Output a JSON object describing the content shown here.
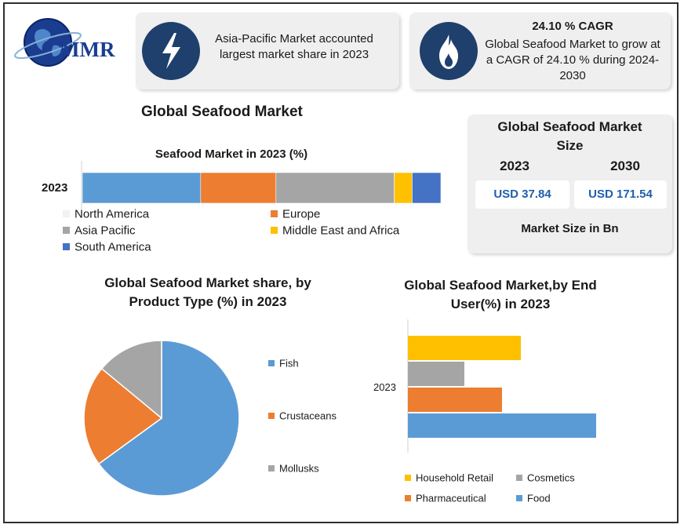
{
  "logo": {
    "text": "MMR"
  },
  "info_cards": [
    {
      "icon": "lightning-icon",
      "text": "Asia-Pacific Market accounted largest market share in 2023"
    },
    {
      "icon": "flame-icon",
      "title": "24.10 % CAGR",
      "text": "Global Seafood Market to grow at a CAGR of 24.10 % during 2024-2030"
    }
  ],
  "main_title": "Global Seafood Market",
  "size_card": {
    "title": "Global Seafood Market Size",
    "year_a": "2023",
    "year_b": "2030",
    "value_a": "USD 37.84",
    "value_b": "USD 171.54",
    "footer": "Market Size in Bn"
  },
  "colors": {
    "blue": "#5b9bd5",
    "orange": "#ed7d31",
    "gray": "#a5a5a5",
    "yellow": "#ffc000",
    "darkblue": "#4472c4"
  },
  "chart_data": [
    {
      "type": "bar",
      "orientation": "horizontal-stacked",
      "title": "Seafood Market in 2023 (%)",
      "categories": [
        "2023"
      ],
      "series": [
        {
          "name": "North America",
          "values": [
            33
          ],
          "color": "#5b9bd5",
          "legend_color": "#f2f2f2"
        },
        {
          "name": "Europe",
          "values": [
            21
          ],
          "color": "#ed7d31"
        },
        {
          "name": "Asia Pacific",
          "values": [
            33
          ],
          "color": "#a5a5a5"
        },
        {
          "name": "Middle East and Africa",
          "values": [
            5
          ],
          "color": "#ffc000"
        },
        {
          "name": "South America",
          "values": [
            8
          ],
          "color": "#4472c4"
        }
      ],
      "legend": "bottom"
    },
    {
      "type": "pie",
      "title": "Global Seafood Market share, by Product Type (%) in 2023",
      "categories": [
        "Fish",
        "Crustaceans",
        "Mollusks"
      ],
      "values": [
        65,
        21,
        14
      ],
      "colors": [
        "#5b9bd5",
        "#ed7d31",
        "#a5a5a5"
      ],
      "legend": "right"
    },
    {
      "type": "bar",
      "orientation": "horizontal-grouped",
      "title": "Global Seafood Market,by End User(%) in 2023",
      "categories": [
        "2023"
      ],
      "series": [
        {
          "name": "Household Retail",
          "values": [
            30
          ],
          "color": "#ffc000"
        },
        {
          "name": "Cosmetics",
          "values": [
            15
          ],
          "color": "#a5a5a5"
        },
        {
          "name": "Pharmaceutical",
          "values": [
            25
          ],
          "color": "#ed7d31"
        },
        {
          "name": "Food",
          "values": [
            50
          ],
          "color": "#5b9bd5"
        }
      ],
      "legend": "bottom"
    }
  ]
}
